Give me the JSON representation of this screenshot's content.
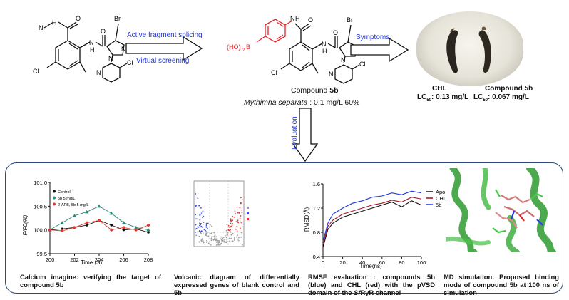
{
  "top": {
    "arrow1_top_label": "Active fragment splicing",
    "arrow1_bottom_label": "Virtual screening",
    "arrow2_label": "Symptoms",
    "arrow3_label": "Evaluation",
    "compound_name": "Compound ",
    "compound_id": "5b",
    "species": "Mythimna separata",
    "activity": " : 0.1 mg/L 60%",
    "photo_left_name": "CHL",
    "photo_left_lc": "LC",
    "photo_left_lc_sub": "50",
    "photo_left_value": ": 0.13 mg/L",
    "photo_right_name": "Compound 5b",
    "photo_right_lc": "LC",
    "photo_right_lc_sub": "50",
    "photo_right_value": ": 0.067 mg/L"
  },
  "molecules": {
    "left_atoms": [
      "N",
      "H",
      "O",
      "N",
      "H",
      "O",
      "Br",
      "N",
      "N",
      "N",
      "Cl",
      "Cl"
    ],
    "right_atoms": [
      "N",
      "H",
      "O",
      "(HO)",
      "2",
      "B",
      "N",
      "H",
      "O",
      "Br",
      "N",
      "N",
      "N",
      "Cl",
      "Cl"
    ]
  },
  "panels": {
    "calcium": {
      "y_label": "F/F0(%)",
      "x_label": "Time (S)",
      "legend": [
        "Control",
        "5b 5 mg/L",
        "2-APB, 5b 5 mg/L"
      ],
      "caption": "Calcium imagine: verifying the target of compound 5b"
    },
    "volcano": {
      "caption": "Volcanic diagram of differentially expressed genes of blank control and 5b"
    },
    "rmsd": {
      "y_label": "RMSD(Å)",
      "x_label": "Time(ns)",
      "legend": [
        "Apo",
        "CHL",
        "5b"
      ],
      "caption_part1": "RMSF evaluation : compounds 5b (blue) and CHL (red) with the pVSD domain of the ",
      "caption_italic": "Sf",
      "caption_part2": "RyR channel"
    },
    "md": {
      "caption": "MD simulation: Proposed binding mode of compound 5b at 100 ns of simulation"
    }
  },
  "chart_data": [
    {
      "type": "line",
      "title": "",
      "xlabel": "Time (S)",
      "ylabel": "F/F0(%)",
      "xlim": [
        200,
        208
      ],
      "ylim": [
        99.5,
        101.0
      ],
      "x_ticks": [
        "200",
        "202",
        "204",
        "206",
        "208"
      ],
      "y_ticks": [
        "99.5",
        "100.0",
        "100.5",
        "101.0"
      ],
      "x": [
        200,
        201,
        202,
        203,
        204,
        205,
        206,
        207,
        208
      ],
      "series": [
        {
          "name": "Control",
          "color": "#111111",
          "values": [
            100.0,
            100.02,
            100.05,
            100.1,
            100.2,
            100.1,
            100.0,
            100.02,
            99.95
          ]
        },
        {
          "name": "5b 5 mg/L",
          "color": "#2a8a7a",
          "values": [
            100.0,
            100.15,
            100.3,
            100.38,
            100.5,
            100.35,
            100.15,
            100.05,
            100.0
          ]
        },
        {
          "name": "2-APB, 5b 5 mg/L",
          "color": "#e03a2a",
          "values": [
            100.0,
            99.98,
            100.05,
            100.15,
            100.2,
            100.0,
            100.05,
            100.0,
            100.1
          ]
        }
      ]
    },
    {
      "type": "line",
      "title": "",
      "xlabel": "Time(ns)",
      "ylabel": "RMSD(Å)",
      "xlim": [
        0,
        100
      ],
      "ylim": [
        0.4,
        1.6
      ],
      "x_ticks": [
        "0",
        "20",
        "40",
        "60",
        "80",
        "100"
      ],
      "y_ticks": [
        "0.4",
        "0.8",
        "1.2",
        "1.6"
      ],
      "x": [
        0,
        5,
        10,
        20,
        30,
        40,
        50,
        60,
        70,
        80,
        90,
        100
      ],
      "series": [
        {
          "name": "Apo",
          "color": "#111111",
          "values": [
            0.55,
            0.85,
            0.95,
            1.05,
            1.1,
            1.15,
            1.2,
            1.25,
            1.3,
            1.22,
            1.32,
            1.25
          ]
        },
        {
          "name": "CHL",
          "color": "#a0142a",
          "values": [
            0.6,
            0.9,
            1.0,
            1.1,
            1.15,
            1.2,
            1.25,
            1.28,
            1.33,
            1.3,
            1.38,
            1.35
          ]
        },
        {
          "name": "5b",
          "color": "#1f35e6",
          "values": [
            0.65,
            0.95,
            1.1,
            1.2,
            1.28,
            1.32,
            1.38,
            1.4,
            1.45,
            1.42,
            1.48,
            1.45
          ]
        }
      ]
    }
  ]
}
